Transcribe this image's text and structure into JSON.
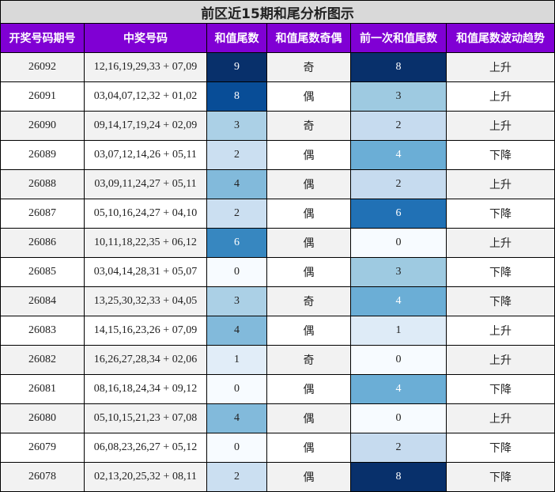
{
  "table": {
    "title": "前区近15期和尾分析图示",
    "columns": [
      "开奖号码期号",
      "中奖号码",
      "和值尾数",
      "和值尾数奇偶",
      "前一次和值尾数",
      "和值尾数波动趋势"
    ],
    "rows": [
      [
        26092,
        "12,16,19,29,33 + 07,09",
        9,
        "奇",
        8,
        "上升"
      ],
      [
        26091,
        "03,04,07,12,32 + 01,02",
        8,
        "偶",
        3,
        "上升"
      ],
      [
        26090,
        "09,14,17,19,24 + 02,09",
        3,
        "奇",
        2,
        "上升"
      ],
      [
        26089,
        "03,07,12,14,26 + 05,11",
        2,
        "偶",
        4,
        "下降"
      ],
      [
        26088,
        "03,09,11,24,27 + 05,11",
        4,
        "偶",
        2,
        "上升"
      ],
      [
        26087,
        "05,10,16,24,27 + 04,10",
        2,
        "偶",
        6,
        "下降"
      ],
      [
        26086,
        "10,11,18,22,35 + 06,12",
        6,
        "偶",
        0,
        "上升"
      ],
      [
        26085,
        "03,04,14,28,31 + 05,07",
        0,
        "偶",
        3,
        "下降"
      ],
      [
        26084,
        "13,25,30,32,33 + 04,05",
        3,
        "奇",
        4,
        "下降"
      ],
      [
        26083,
        "14,15,16,23,26 + 07,09",
        4,
        "偶",
        1,
        "上升"
      ],
      [
        26082,
        "16,26,27,28,34 + 02,06",
        1,
        "奇",
        0,
        "上升"
      ],
      [
        26081,
        "08,16,18,24,34 + 09,12",
        0,
        "偶",
        4,
        "下降"
      ],
      [
        26080,
        "05,10,15,21,23 + 07,08",
        4,
        "偶",
        0,
        "上升"
      ],
      [
        26079,
        "06,08,23,26,27 + 05,12",
        0,
        "偶",
        2,
        "下降"
      ],
      [
        26078,
        "02,13,20,25,32 + 08,11",
        2,
        "偶",
        8,
        "下降"
      ]
    ]
  }
}
